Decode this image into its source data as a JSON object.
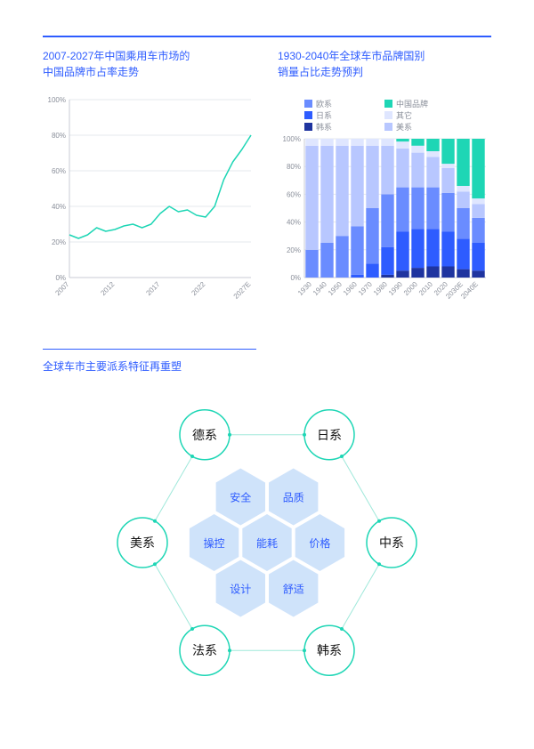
{
  "line_chart": {
    "title": "2007-2027年中国乘用车市场的\n中国品牌市占率走势",
    "ylim": [
      0,
      100
    ],
    "ytick_step": 20,
    "x_labels": [
      "2007",
      "2012",
      "2017",
      "2022",
      "2027E"
    ],
    "x_values": [
      2007,
      2008,
      2009,
      2010,
      2011,
      2012,
      2013,
      2014,
      2015,
      2016,
      2017,
      2018,
      2019,
      2020,
      2021,
      2022,
      2023,
      2024,
      2025,
      2026,
      2027
    ],
    "y_values": [
      24,
      22,
      24,
      28,
      26,
      27,
      29,
      30,
      28,
      30,
      36,
      40,
      37,
      38,
      35,
      34,
      40,
      55,
      65,
      72,
      80
    ],
    "line_color": "#1ed6b5",
    "line_width": 1.5,
    "grid_color": "#e6e8ee",
    "axis_color": "#c8cbd4",
    "label_color": "#8a8f9a",
    "label_fontsize": 8
  },
  "stacked_chart": {
    "title": "1930-2040年全球车市品牌国别\n销量占比走势预判",
    "ylim": [
      0,
      100
    ],
    "ytick_step": 20,
    "x_labels": [
      "1930",
      "1940",
      "1950",
      "1960",
      "1970",
      "1980",
      "1990",
      "2000",
      "2010",
      "2020",
      "2030E",
      "2040E"
    ],
    "series": [
      {
        "name": "韩系",
        "color": "#1f349f",
        "values": [
          0,
          0,
          0,
          0,
          0,
          2,
          5,
          7,
          8,
          8,
          6,
          5
        ]
      },
      {
        "name": "日系",
        "color": "#2e5cff",
        "values": [
          0,
          0,
          0,
          2,
          10,
          20,
          28,
          28,
          27,
          25,
          22,
          20
        ]
      },
      {
        "name": "欧系",
        "color": "#6a8cff",
        "values": [
          20,
          25,
          30,
          35,
          40,
          38,
          32,
          30,
          30,
          28,
          22,
          18
        ]
      },
      {
        "name": "美系",
        "color": "#b8c7ff",
        "values": [
          75,
          70,
          65,
          58,
          45,
          35,
          28,
          25,
          22,
          18,
          12,
          10
        ]
      },
      {
        "name": "其它",
        "color": "#dfe6ff",
        "values": [
          5,
          5,
          5,
          5,
          5,
          5,
          5,
          5,
          4,
          3,
          4,
          4
        ]
      },
      {
        "name": "中国品牌",
        "color": "#1ed6b5",
        "values": [
          0,
          0,
          0,
          0,
          0,
          0,
          2,
          5,
          9,
          18,
          34,
          43
        ]
      }
    ],
    "legend_order": [
      [
        "欧系",
        "#6a8cff"
      ],
      [
        "日系",
        "#2e5cff"
      ],
      [
        "韩系",
        "#1f349f"
      ],
      [
        "中国品牌",
        "#1ed6b5"
      ],
      [
        "其它",
        "#dfe6ff"
      ],
      [
        "美系",
        "#b8c7ff"
      ]
    ],
    "grid_color": "#e6e8ee",
    "axis_color": "#c8cbd4",
    "label_color": "#8a8f9a",
    "label_fontsize": 8,
    "bar_gap": 0.15
  },
  "diagram": {
    "title": "全球车市主要派系特征再重塑",
    "outer_nodes": [
      {
        "label": "德系",
        "angle": -120
      },
      {
        "label": "日系",
        "angle": -60
      },
      {
        "label": "中系",
        "angle": 0
      },
      {
        "label": "韩系",
        "angle": 60
      },
      {
        "label": "法系",
        "angle": 120
      },
      {
        "label": "美系",
        "angle": 180
      }
    ],
    "outer_radius": 140,
    "circle_r": 28,
    "circle_stroke": "#1ed6b5",
    "circle_stroke_width": 1.5,
    "ring_stroke": "#9fe8da",
    "outer_label_fontsize": 14,
    "outer_label_color": "#111111",
    "hex_fill": "#cfe3fa",
    "hex_r": 32,
    "hex_gap": 4,
    "hex_label_color": "#2e5cff",
    "hex_label_fontsize": 12,
    "hex_nodes": [
      {
        "label": "安全",
        "q": 0,
        "r": -1
      },
      {
        "label": "操控",
        "q": -1,
        "r": 0
      },
      {
        "label": "品质",
        "q": 1,
        "r": -1
      },
      {
        "label": "能耗",
        "q": 0,
        "r": 0
      },
      {
        "label": "设计",
        "q": -1,
        "r": 1
      },
      {
        "label": "价格",
        "q": 1,
        "r": 0
      },
      {
        "label": "舒适",
        "q": 0,
        "r": 1
      }
    ]
  }
}
